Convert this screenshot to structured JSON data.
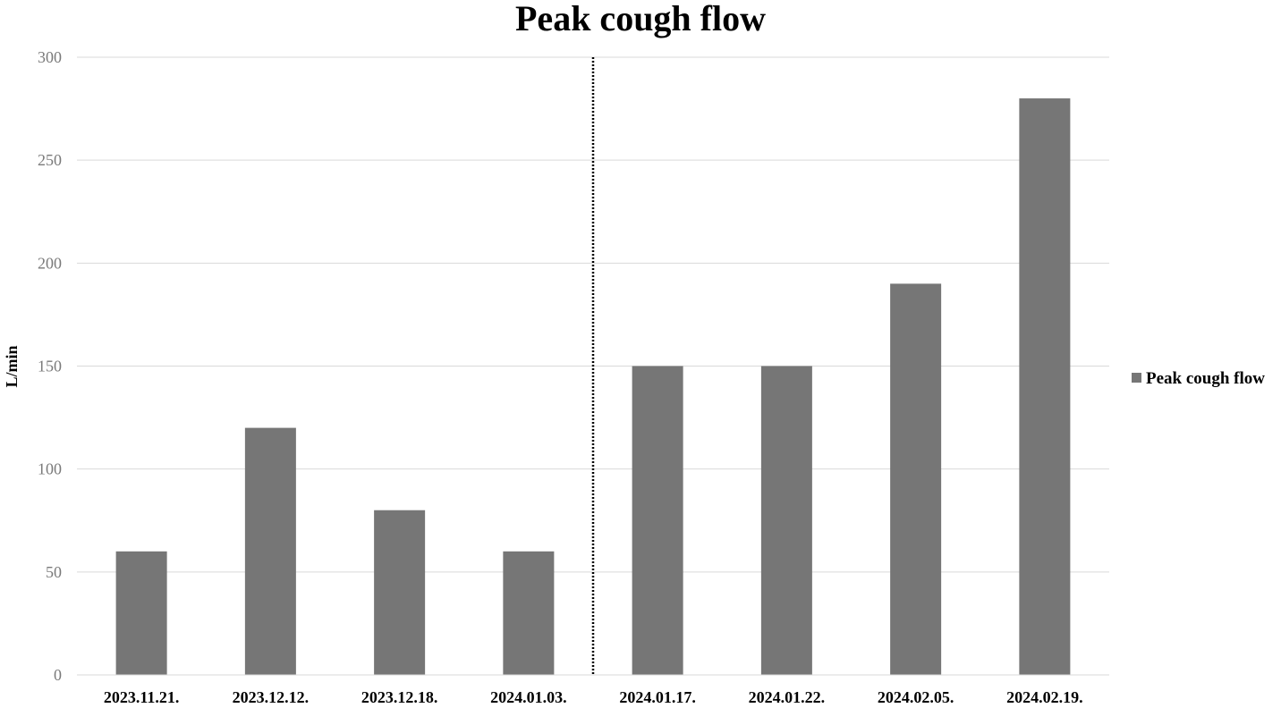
{
  "chart_data": {
    "type": "bar",
    "title": "Peak cough flow",
    "xlabel": "",
    "ylabel": "L/min",
    "ylim": [
      0,
      300
    ],
    "yticks": [
      0,
      50,
      100,
      150,
      200,
      250,
      300
    ],
    "grid": true,
    "categories": [
      "2023.11.21.",
      "2023.12.12.",
      "2023.12.18.",
      "2024.01.03.",
      "2024.01.17.",
      "2024.01.22.",
      "2024.02.05.",
      "2024.02.19."
    ],
    "series": [
      {
        "name": "Peak cough flow",
        "color": "#767676",
        "values": [
          60,
          120,
          80,
          60,
          150,
          150,
          190,
          280
        ]
      }
    ],
    "annotations": [
      {
        "type": "vertical-dotted-line",
        "between_categories": [
          "2024.01.03.",
          "2024.01.17."
        ]
      }
    ],
    "legend": {
      "position": "right",
      "entries": [
        "Peak cough flow"
      ]
    }
  }
}
